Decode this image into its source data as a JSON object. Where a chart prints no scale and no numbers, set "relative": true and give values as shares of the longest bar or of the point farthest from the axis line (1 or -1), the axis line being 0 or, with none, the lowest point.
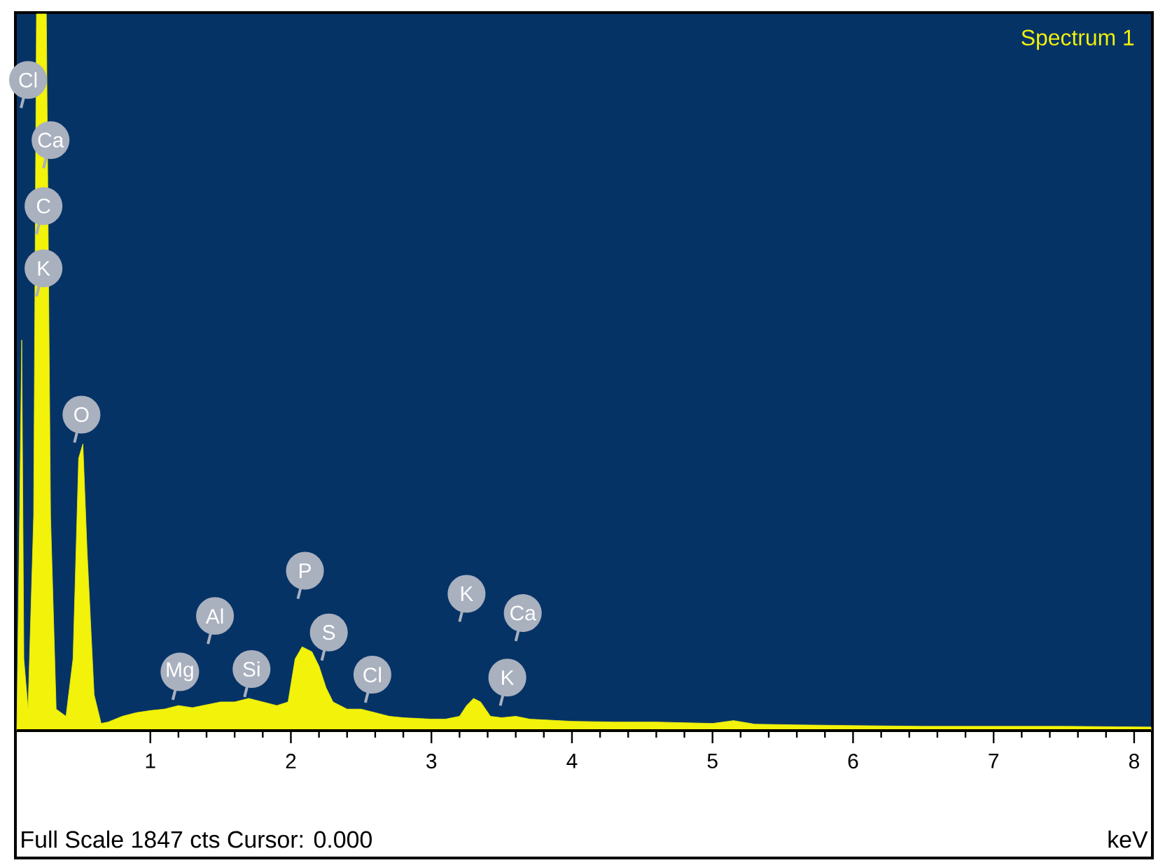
{
  "chart_data": {
    "type": "area",
    "relative": true,
    "xlabel": "keV",
    "xlim": [
      0.05,
      8.12
    ],
    "xticks": [
      1,
      2,
      3,
      4,
      5,
      6,
      7,
      8
    ],
    "x": [
      0.05,
      0.07,
      0.085,
      0.1,
      0.13,
      0.17,
      0.19,
      0.26,
      0.29,
      0.33,
      0.4,
      0.45,
      0.49,
      0.52,
      0.55,
      0.6,
      0.65,
      0.7,
      0.8,
      0.9,
      1.0,
      1.1,
      1.2,
      1.3,
      1.4,
      1.5,
      1.6,
      1.7,
      1.8,
      1.9,
      1.98,
      2.03,
      2.08,
      2.15,
      2.2,
      2.25,
      2.3,
      2.4,
      2.5,
      2.6,
      2.7,
      2.8,
      2.9,
      3.0,
      3.1,
      3.2,
      3.25,
      3.3,
      3.35,
      3.42,
      3.5,
      3.6,
      3.7,
      3.8,
      4.0,
      4.3,
      4.6,
      5.0,
      5.15,
      5.3,
      5.6,
      6.0,
      6.5,
      7.0,
      7.5,
      8.12
    ],
    "series": [
      {
        "name": "Spectrum 1",
        "color": "#f2f20a",
        "values": [
          0.0,
          0.3,
          0.545,
          0.1,
          0.03,
          0.3,
          1.0,
          1.0,
          0.3,
          0.03,
          0.02,
          0.1,
          0.38,
          0.4,
          0.25,
          0.05,
          0.01,
          0.012,
          0.02,
          0.025,
          0.028,
          0.03,
          0.035,
          0.032,
          0.036,
          0.04,
          0.04,
          0.045,
          0.04,
          0.035,
          0.04,
          0.1,
          0.117,
          0.11,
          0.09,
          0.06,
          0.04,
          0.03,
          0.03,
          0.025,
          0.02,
          0.018,
          0.017,
          0.016,
          0.016,
          0.02,
          0.035,
          0.045,
          0.04,
          0.02,
          0.018,
          0.02,
          0.016,
          0.015,
          0.013,
          0.012,
          0.012,
          0.01,
          0.014,
          0.009,
          0.008,
          0.007,
          0.006,
          0.006,
          0.006,
          0.005
        ]
      }
    ],
    "annotations": [
      {
        "text": "Cl",
        "x": 0.13,
        "y": 0.908
      },
      {
        "text": "Ca",
        "x": 0.29,
        "y": 0.824
      },
      {
        "text": "C",
        "x": 0.24,
        "y": 0.732
      },
      {
        "text": "K",
        "x": 0.24,
        "y": 0.645
      },
      {
        "text": "O",
        "x": 0.51,
        "y": 0.441
      },
      {
        "text": "Mg",
        "x": 1.21,
        "y": 0.082
      },
      {
        "text": "Al",
        "x": 1.46,
        "y": 0.16
      },
      {
        "text": "Si",
        "x": 1.72,
        "y": 0.086
      },
      {
        "text": "P",
        "x": 2.1,
        "y": 0.223
      },
      {
        "text": "S",
        "x": 2.27,
        "y": 0.137
      },
      {
        "text": "Cl",
        "x": 2.58,
        "y": 0.078
      },
      {
        "text": "K",
        "x": 3.25,
        "y": 0.191
      },
      {
        "text": "Ca",
        "x": 3.65,
        "y": 0.164
      },
      {
        "text": "K",
        "x": 3.54,
        "y": 0.074
      },
      "Full Scale 1847 cts Cursor: 0.000"
    ]
  }
}
